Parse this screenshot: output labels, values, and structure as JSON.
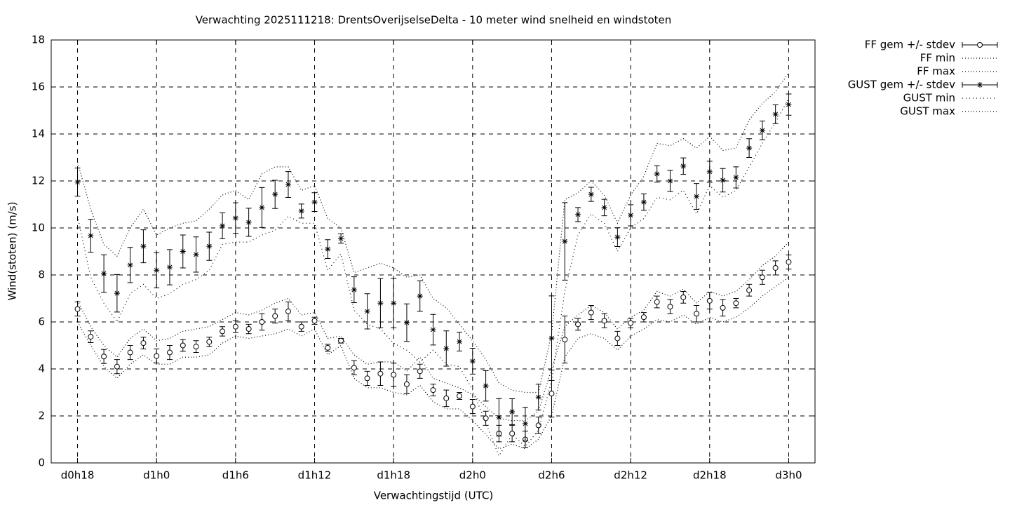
{
  "chart_data": {
    "type": "errorbar",
    "title": "Verwachting 2025111218: DrentsOverijselseDelta - 10 meter wind snelheid en windstoten",
    "x_label": "Verwachtingstijd (UTC)",
    "y_label": "Wind(stoten) (m/s)",
    "x": [
      0,
      1,
      2,
      3,
      4,
      5,
      6,
      7,
      8,
      9,
      10,
      11,
      12,
      13,
      14,
      15,
      16,
      17,
      18,
      19,
      20,
      21,
      22,
      23,
      24,
      25,
      26,
      27,
      28,
      29,
      30,
      31,
      32,
      33,
      34,
      35,
      36,
      37,
      38,
      39,
      40,
      41,
      42,
      43,
      44,
      45,
      46,
      47,
      48,
      49,
      50,
      51,
      52,
      53,
      54
    ],
    "xlim": [
      -2,
      56
    ],
    "xticks": [
      {
        "value": 0,
        "label": "d0h18"
      },
      {
        "value": 6,
        "label": "d1h0"
      },
      {
        "value": 12,
        "label": "d1h6"
      },
      {
        "value": 18,
        "label": "d1h12"
      },
      {
        "value": 24,
        "label": "d1h18"
      },
      {
        "value": 30,
        "label": "d2h0"
      },
      {
        "value": 36,
        "label": "d2h6"
      },
      {
        "value": 42,
        "label": "d2h12"
      },
      {
        "value": 48,
        "label": "d2h18"
      },
      {
        "value": 54,
        "label": "d3h0"
      }
    ],
    "ylim": [
      0,
      18
    ],
    "yticks": [
      0,
      2,
      4,
      6,
      8,
      10,
      12,
      14,
      16,
      18
    ],
    "grid": true,
    "legend": "outside-top-right",
    "series": [
      {
        "name": "FF gem +/- stdev",
        "color": "#000000",
        "style": "errorbar",
        "marker": "circle",
        "values": [
          6.55,
          5.37,
          4.53,
          4.1,
          4.7,
          5.1,
          4.55,
          4.7,
          5.0,
          4.95,
          5.15,
          5.6,
          5.8,
          5.7,
          6.0,
          6.25,
          6.45,
          5.8,
          6.05,
          4.9,
          5.2,
          4.05,
          3.6,
          3.8,
          3.75,
          3.35,
          3.9,
          3.1,
          2.75,
          2.85,
          2.4,
          1.9,
          1.25,
          1.25,
          1.0,
          1.6,
          2.95,
          5.25,
          5.9,
          6.4,
          6.05,
          5.3,
          5.95,
          6.2,
          6.85,
          6.65,
          7.05,
          6.35,
          6.9,
          6.6,
          6.8,
          7.35,
          7.9,
          8.3,
          8.55
        ],
        "errors": [
          0.3,
          0.25,
          0.3,
          0.3,
          0.3,
          0.25,
          0.3,
          0.3,
          0.25,
          0.25,
          0.2,
          0.2,
          0.25,
          0.2,
          0.35,
          0.3,
          0.4,
          0.2,
          0.15,
          0.15,
          0.1,
          0.3,
          0.3,
          0.5,
          0.5,
          0.4,
          0.3,
          0.25,
          0.35,
          0.15,
          0.3,
          0.3,
          0.35,
          0.35,
          0.35,
          0.35,
          1.0,
          1.0,
          0.25,
          0.3,
          0.3,
          0.3,
          0.2,
          0.2,
          0.25,
          0.3,
          0.25,
          0.35,
          0.35,
          0.35,
          0.2,
          0.25,
          0.3,
          0.3,
          0.3
        ]
      },
      {
        "name": "FF min",
        "color": "#000000",
        "style": "dotted",
        "values": [
          6.0,
          5.0,
          4.1,
          3.6,
          4.2,
          4.6,
          4.2,
          4.2,
          4.5,
          4.5,
          4.6,
          5.1,
          5.4,
          5.3,
          5.4,
          5.5,
          5.7,
          5.4,
          5.7,
          4.6,
          5.0,
          3.6,
          3.2,
          3.2,
          3.0,
          2.9,
          3.3,
          2.6,
          2.3,
          2.3,
          1.8,
          1.2,
          0.6,
          0.8,
          0.6,
          1.0,
          2.0,
          4.5,
          5.3,
          5.5,
          5.3,
          4.8,
          5.4,
          5.7,
          6.1,
          6.0,
          6.3,
          5.9,
          6.2,
          6.0,
          6.2,
          6.6,
          7.1,
          7.5,
          7.9
        ]
      },
      {
        "name": "FF max",
        "color": "#000000",
        "style": "dotted",
        "values": [
          6.9,
          5.8,
          5.0,
          4.5,
          5.3,
          5.7,
          5.2,
          5.3,
          5.6,
          5.7,
          5.8,
          6.1,
          6.4,
          6.3,
          6.5,
          6.8,
          7.0,
          6.3,
          6.4,
          5.3,
          5.4,
          4.6,
          4.2,
          4.3,
          4.3,
          3.9,
          4.5,
          3.6,
          3.4,
          3.2,
          2.9,
          2.4,
          1.9,
          1.8,
          1.8,
          2.2,
          4.0,
          5.8,
          6.3,
          6.7,
          6.4,
          5.7,
          6.2,
          6.5,
          7.3,
          7.1,
          7.4,
          6.8,
          7.3,
          7.1,
          7.3,
          7.8,
          8.4,
          8.8,
          9.4
        ]
      },
      {
        "name": "GUST gem +/- stdev",
        "color": "#000000",
        "style": "errorbar",
        "marker": "star",
        "values": [
          11.95,
          9.67,
          8.06,
          7.22,
          8.42,
          9.22,
          8.2,
          8.33,
          9.0,
          8.87,
          9.22,
          10.09,
          10.42,
          10.24,
          10.87,
          11.43,
          11.85,
          10.72,
          11.1,
          9.1,
          9.55,
          7.37,
          6.45,
          6.8,
          6.8,
          5.97,
          7.1,
          5.67,
          4.87,
          5.16,
          4.33,
          3.28,
          1.94,
          2.18,
          1.67,
          2.8,
          5.31,
          9.43,
          10.57,
          11.43,
          10.87,
          9.61,
          10.54,
          11.1,
          12.3,
          12.0,
          12.63,
          11.34,
          12.39,
          12.03,
          12.15,
          13.4,
          14.15,
          14.84,
          15.25
        ],
        "errors": [
          0.6,
          0.7,
          0.8,
          0.8,
          0.75,
          0.7,
          0.75,
          0.75,
          0.7,
          0.75,
          0.6,
          0.55,
          0.65,
          0.6,
          0.85,
          0.6,
          0.55,
          0.3,
          0.4,
          0.4,
          0.2,
          0.55,
          0.75,
          1.05,
          1.05,
          0.8,
          0.65,
          0.65,
          0.75,
          0.4,
          0.55,
          0.65,
          0.8,
          0.55,
          0.7,
          0.55,
          1.8,
          1.65,
          0.3,
          0.3,
          0.35,
          0.4,
          0.45,
          0.35,
          0.35,
          0.45,
          0.35,
          0.55,
          0.45,
          0.5,
          0.45,
          0.4,
          0.4,
          0.4,
          0.45
        ]
      },
      {
        "name": "GUST min",
        "color": "#000000",
        "style": "dashdot",
        "values": [
          10.5,
          7.9,
          6.8,
          6.0,
          7.2,
          7.6,
          7.0,
          7.2,
          7.6,
          7.8,
          8.2,
          9.3,
          9.4,
          9.4,
          9.7,
          9.9,
          10.5,
          10.2,
          10.2,
          8.2,
          8.9,
          6.5,
          5.9,
          5.7,
          5.1,
          4.8,
          4.3,
          4.8,
          4.2,
          4.1,
          3.1,
          1.7,
          0.3,
          1.2,
          0.7,
          1.4,
          3.5,
          7.3,
          9.7,
          10.6,
          10.2,
          9.0,
          10.0,
          10.4,
          11.3,
          11.2,
          11.6,
          10.6,
          11.8,
          11.3,
          11.6,
          12.6,
          13.6,
          14.5,
          15.5
        ]
      },
      {
        "name": "GUST max",
        "color": "#000000",
        "style": "dotted",
        "values": [
          12.8,
          10.8,
          9.3,
          8.8,
          10.0,
          10.8,
          9.7,
          10.0,
          10.2,
          10.3,
          10.8,
          11.4,
          11.6,
          11.2,
          12.3,
          12.6,
          12.6,
          11.6,
          11.8,
          10.4,
          10.0,
          8.1,
          8.3,
          8.5,
          8.3,
          7.9,
          8.0,
          7.0,
          6.6,
          5.9,
          5.2,
          4.4,
          3.4,
          3.1,
          3.0,
          3.0,
          5.5,
          11.2,
          11.5,
          12.0,
          11.4,
          10.2,
          11.4,
          12.2,
          13.6,
          13.5,
          13.8,
          13.4,
          13.9,
          13.3,
          13.4,
          14.6,
          15.3,
          15.8,
          16.6
        ]
      }
    ]
  }
}
